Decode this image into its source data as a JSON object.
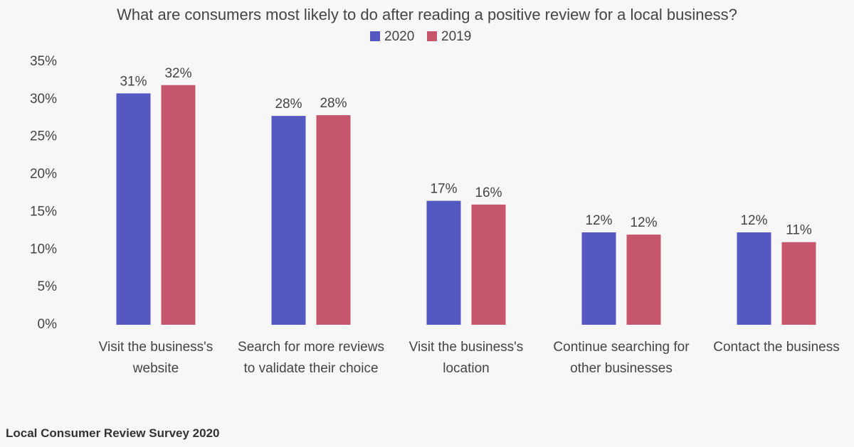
{
  "chart_data": {
    "type": "bar",
    "title": "What are consumers most likely to do after reading a positive review for a local business?",
    "source": "Local Consumer Review Survey 2020",
    "categories": [
      "Visit the business's website",
      "Search for more reviews to validate their choice",
      "Visit the business's location",
      "Continue searching for other businesses",
      "Contact the business"
    ],
    "series": [
      {
        "name": "2020",
        "color": "#5558c0",
        "values": [
          30.8,
          27.8,
          16.5,
          12.3,
          12.3
        ],
        "value_labels": [
          "31%",
          "28%",
          "17%",
          "12%",
          "12%"
        ]
      },
      {
        "name": "2019",
        "color": "#c5566b",
        "values": [
          31.9,
          27.9,
          16,
          12,
          11
        ],
        "value_labels": [
          "32%",
          "28%",
          "16%",
          "12%",
          "11%"
        ]
      }
    ],
    "ylim": [
      0,
      35
    ],
    "yticks": [
      {
        "value": 0,
        "label": "0%"
      },
      {
        "value": 5,
        "label": "5%"
      },
      {
        "value": 10,
        "label": "10%"
      },
      {
        "value": 15,
        "label": "15%"
      },
      {
        "value": 20,
        "label": "20%"
      },
      {
        "value": 25,
        "label": "25%"
      },
      {
        "value": 30,
        "label": "30%"
      },
      {
        "value": 35,
        "label": "35%"
      }
    ],
    "legend": "top"
  }
}
